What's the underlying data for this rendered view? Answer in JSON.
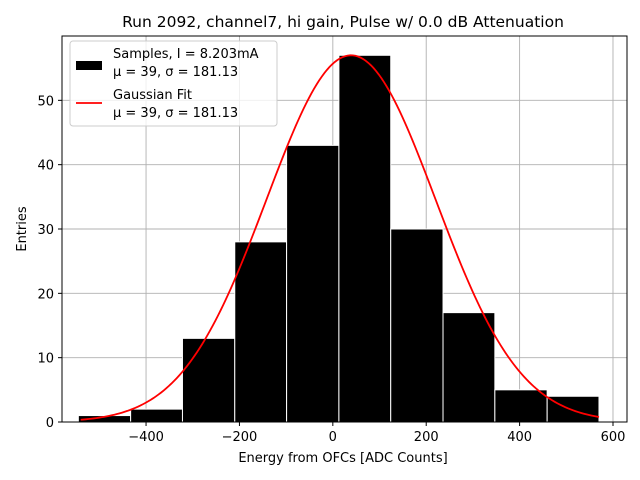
{
  "chart_data": {
    "type": "bar",
    "title": "Run 2092, channel7, hi gain, Pulse w/ 0.0 dB Attenuation",
    "xlabel": "Energy from OFCs [ADC Counts]",
    "ylabel": "Entries",
    "xlim": [
      -580,
      630
    ],
    "ylim": [
      0,
      60
    ],
    "xticks": [
      -400,
      -200,
      0,
      200,
      400,
      600
    ],
    "yticks": [
      0,
      10,
      20,
      30,
      40,
      50
    ],
    "grid": true,
    "bar_color": "#000000",
    "bar_edge_color": "#ffffff",
    "fit_color": "#ff0000",
    "bins": [
      {
        "left": -545,
        "right": -433,
        "count": 1
      },
      {
        "left": -433,
        "right": -322,
        "count": 2
      },
      {
        "left": -322,
        "right": -210,
        "count": 13
      },
      {
        "left": -210,
        "right": -99,
        "count": 28
      },
      {
        "left": -99,
        "right": 13,
        "count": 43
      },
      {
        "left": 13,
        "right": 124,
        "count": 57
      },
      {
        "left": 124,
        "right": 236,
        "count": 30
      },
      {
        "left": 236,
        "right": 347,
        "count": 17
      },
      {
        "left": 347,
        "right": 459,
        "count": 5
      },
      {
        "left": 459,
        "right": 570,
        "count": 4
      }
    ],
    "fit": {
      "mu": 39,
      "sigma": 181.13,
      "amplitude": 57,
      "x_range": [
        -540,
        570
      ]
    },
    "legend": {
      "position": "top-left",
      "entries": [
        {
          "name": "samples",
          "line1": "Samples, I = 8.203mA",
          "line2": "μ = 39, σ = 181.13"
        },
        {
          "name": "fit",
          "line1": "Gaussian Fit",
          "line2": "μ = 39, σ = 181.13"
        }
      ]
    }
  }
}
